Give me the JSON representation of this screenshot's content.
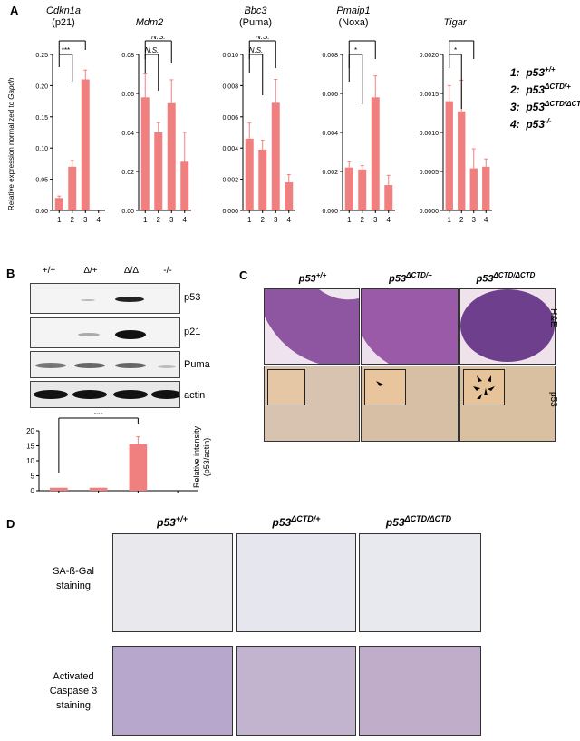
{
  "panels": {
    "a": "A",
    "b": "B",
    "c": "C",
    "d": "D"
  },
  "panel_a": {
    "ylabel": "Relative expression normalized to ",
    "ylabel_gene": "Gapdh",
    "legend": [
      {
        "num": "1:",
        "base": "p53",
        "sup": "+/+"
      },
      {
        "num": "2:",
        "base": "p53",
        "sup": "ΔCTD/+"
      },
      {
        "num": "3:",
        "base": "p53",
        "sup": "ΔCTD/ΔCTD"
      },
      {
        "num": "4:",
        "base": "p53",
        "sup": "-/-"
      }
    ]
  },
  "chart_data": [
    {
      "type": "bar",
      "title": "Cdkn1a",
      "subtitle": "(p21)",
      "categories": [
        "1",
        "2",
        "3",
        "4"
      ],
      "values": [
        0.02,
        0.07,
        0.21,
        0.0
      ],
      "errors": [
        0.003,
        0.01,
        0.015,
        0.0
      ],
      "ylim": [
        0,
        0.25
      ],
      "yticks": [
        "0.00",
        "0.05",
        "0.10",
        "0.15",
        "0.20",
        "0.25"
      ],
      "annotations": [
        {
          "label": "***",
          "from": 1,
          "to": 3
        },
        {
          "label": "***",
          "from": 1,
          "to": 2
        }
      ]
    },
    {
      "type": "bar",
      "title": "Mdm2",
      "subtitle": "",
      "categories": [
        "1",
        "2",
        "3",
        "4"
      ],
      "values": [
        0.058,
        0.04,
        0.055,
        0.025
      ],
      "errors": [
        0.012,
        0.005,
        0.012,
        0.015
      ],
      "ylim": [
        0,
        0.08
      ],
      "yticks": [
        "0.00",
        "0.02",
        "0.04",
        "0.06",
        "0.08"
      ],
      "annotations": [
        {
          "label": "N.S.",
          "from": 1,
          "to": 3
        },
        {
          "label": "N.S.",
          "from": 1,
          "to": 2
        }
      ]
    },
    {
      "type": "bar",
      "title": "Bbc3",
      "subtitle": "(Puma)",
      "categories": [
        "1",
        "2",
        "3",
        "4"
      ],
      "values": [
        0.0046,
        0.0039,
        0.0069,
        0.0018
      ],
      "errors": [
        0.001,
        0.0006,
        0.0015,
        0.0005
      ],
      "ylim": [
        0,
        0.01
      ],
      "yticks": [
        "0.000",
        "0.002",
        "0.004",
        "0.006",
        "0.008",
        "0.010"
      ],
      "annotations": [
        {
          "label": "N.S.",
          "from": 1,
          "to": 3
        },
        {
          "label": "N.S.",
          "from": 1,
          "to": 2
        }
      ]
    },
    {
      "type": "bar",
      "title": "Pmaip1",
      "subtitle": "(Noxa)",
      "categories": [
        "1",
        "2",
        "3",
        "4"
      ],
      "values": [
        0.0022,
        0.0021,
        0.0058,
        0.0013
      ],
      "errors": [
        0.0003,
        0.0002,
        0.0011,
        0.0005
      ],
      "ylim": [
        0,
        0.008
      ],
      "yticks": [
        "0.000",
        "0.002",
        "0.004",
        "0.006",
        "0.008"
      ],
      "annotations": [
        {
          "label": "*",
          "from": 1,
          "to": 3
        },
        {
          "label": "*",
          "from": 1,
          "to": 2
        }
      ]
    },
    {
      "type": "bar",
      "title": "Tigar",
      "subtitle": "",
      "categories": [
        "1",
        "2",
        "3",
        "4"
      ],
      "values": [
        0.0014,
        0.00127,
        0.00054,
        0.00056
      ],
      "errors": [
        0.0002,
        0.0004,
        0.00025,
        0.0001
      ],
      "ylim": [
        0,
        0.002
      ],
      "yticks": [
        "0.0000",
        "0.0005",
        "0.0010",
        "0.0015",
        "0.0020"
      ],
      "annotations": [
        {
          "label": "*",
          "from": 1,
          "to": 3
        },
        {
          "label": "*",
          "from": 1,
          "to": 2
        }
      ]
    },
    {
      "type": "bar",
      "title": "",
      "subtitle": "",
      "categories": [
        "+/+",
        "Δ/+",
        "Δ/Δ",
        "-/-"
      ],
      "values": [
        1.0,
        1.0,
        15.5,
        0.0
      ],
      "errors": [
        0,
        0,
        2.5,
        0
      ],
      "ylim": [
        0,
        20
      ],
      "yticks": [
        "0",
        "5",
        "10",
        "15",
        "20"
      ],
      "ylabel": "Relative intensity (p53/actin)",
      "annotations": [
        {
          "label": "***",
          "from": 1,
          "to": 3
        }
      ]
    }
  ],
  "panel_b": {
    "lanes": [
      "+/+",
      "Δ/+",
      "Δ/Δ",
      "-/-"
    ],
    "blots": [
      "p53",
      "p21",
      "Puma",
      "actin"
    ],
    "quant_ylabel": "Relative intensity",
    "quant_ylabel2": "(p53/actin)"
  },
  "panel_c": {
    "columns": [
      {
        "base": "p53",
        "sup": "+/+"
      },
      {
        "base": "p53",
        "sup": "ΔCTD/+"
      },
      {
        "base": "p53",
        "sup": "ΔCTD/ΔCTD"
      }
    ],
    "rows": [
      "H&E",
      "p53"
    ]
  },
  "panel_d": {
    "columns": [
      {
        "base": "p53",
        "sup": "+/+"
      },
      {
        "base": "p53",
        "sup": "ΔCTD/+"
      },
      {
        "base": "p53",
        "sup": "ΔCTD/ΔCTD"
      }
    ],
    "row1": [
      "SA-ß-Gal",
      "staining"
    ],
    "row2": [
      "Activated",
      "Caspase 3",
      "staining"
    ]
  },
  "colors": {
    "bar": "#f08080",
    "he_purple": "#8a4f9a",
    "ihc_beige": "#d9c3a8",
    "sagal": "#e6e6ec",
    "casp": "#b9a9cc"
  }
}
